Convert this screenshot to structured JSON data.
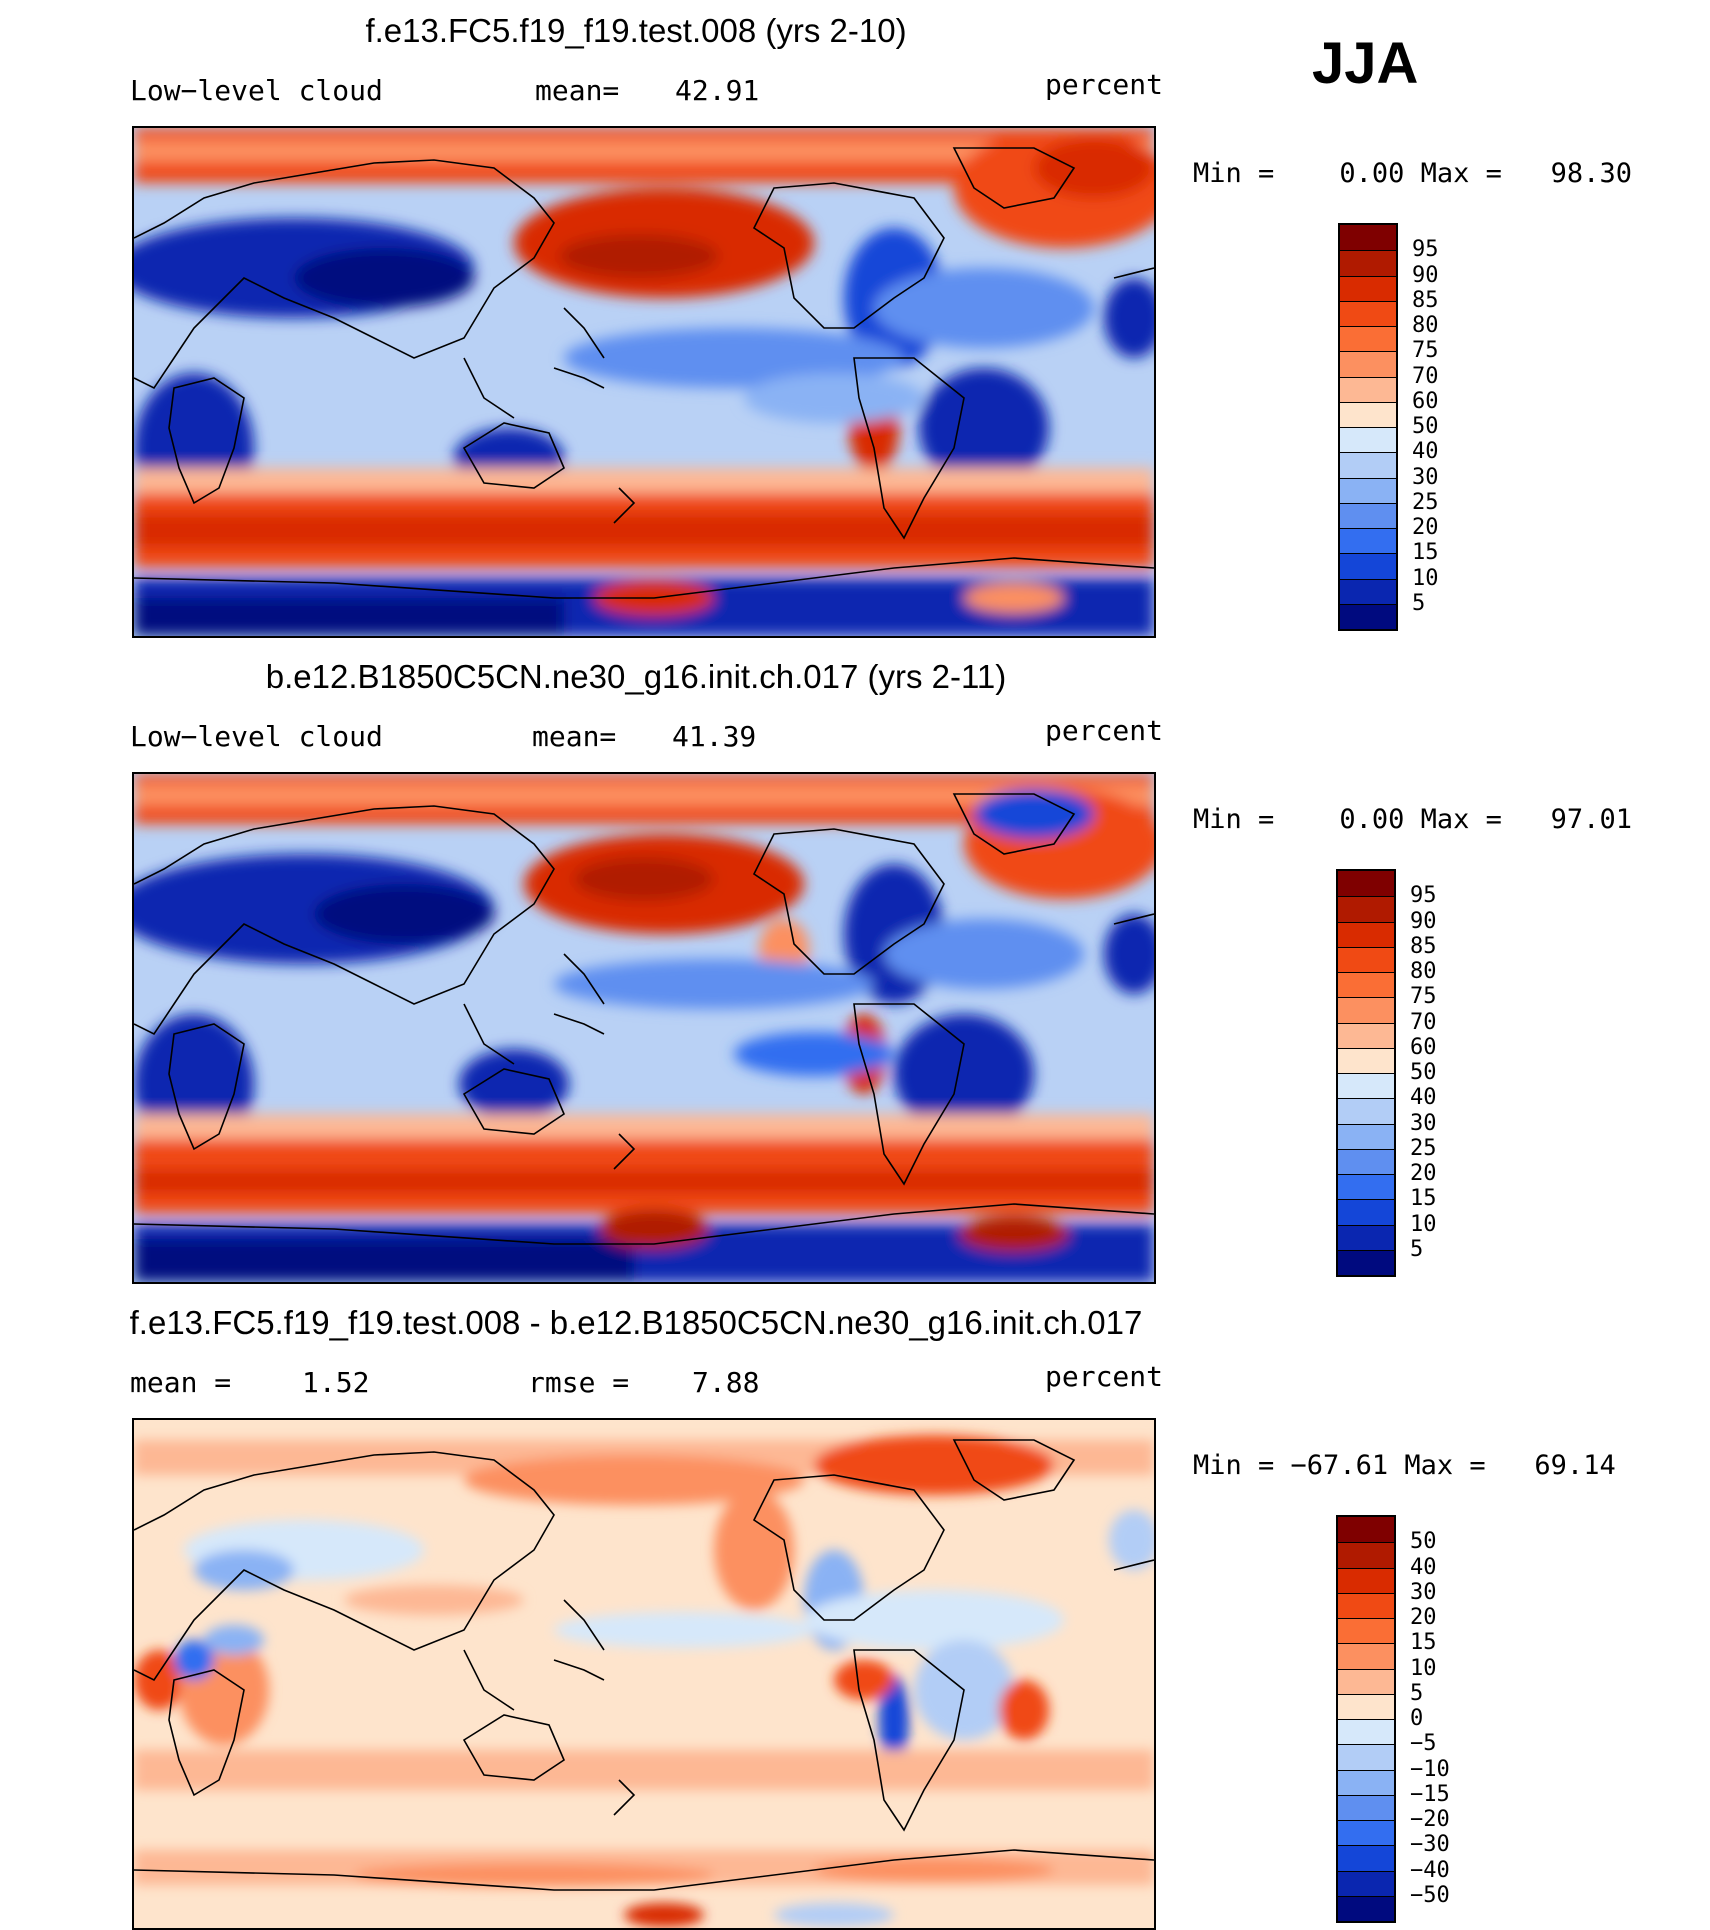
{
  "season": "JJA",
  "panels": [
    {
      "title": "f.e13.FC5.f19_f19.test.008 (yrs 2-10)",
      "left_label": "Low−level cloud",
      "stat1_label": "mean=",
      "stat1_value": "42.91",
      "stat2_label": "",
      "stat2_value": "",
      "units": "percent",
      "min_label": "Min =",
      "min_value": "0.00",
      "max_label": "Max =",
      "max_value": "98.30",
      "colorbar_type": "abs"
    },
    {
      "title": "b.e12.B1850C5CN.ne30_g16.init.ch.017 (yrs 2-11)",
      "left_label": "Low−level cloud",
      "stat1_label": "mean=",
      "stat1_value": "41.39",
      "stat2_label": "",
      "stat2_value": "",
      "units": "percent",
      "min_label": "Min =",
      "min_value": "0.00",
      "max_label": "Max =",
      "max_value": "97.01",
      "colorbar_type": "abs"
    },
    {
      "title": "f.e13.FC5.f19_f19.test.008 - b.e12.B1850C5CN.ne30_g16.init.ch.017",
      "left_label": "",
      "stat1_label": "mean =",
      "stat1_value": "1.52",
      "stat2_label": "rmse =",
      "stat2_value": "7.88",
      "units": "percent",
      "min_label": "Min =",
      "min_value": "−67.61",
      "max_label": "Max =",
      "max_value": "69.14",
      "colorbar_type": "diff"
    }
  ],
  "colorbars": {
    "abs": {
      "labels": [
        "95",
        "90",
        "85",
        "80",
        "75",
        "70",
        "60",
        "50",
        "40",
        "30",
        "25",
        "20",
        "15",
        "10",
        "5"
      ],
      "colors": [
        "#7f0000",
        "#b01a00",
        "#d92b00",
        "#f04a14",
        "#fa6e35",
        "#fc9060",
        "#fdb894",
        "#fee4cc",
        "#d6e8fa",
        "#b2cdf6",
        "#8ab2f4",
        "#5f8ff0",
        "#336ef0",
        "#1446d8",
        "#0a26b0",
        "#000a7f"
      ]
    },
    "diff": {
      "labels": [
        "50",
        "40",
        "30",
        "20",
        "15",
        "10",
        "5",
        "0",
        "−5",
        "−10",
        "−15",
        "−20",
        "−30",
        "−40",
        "−50"
      ],
      "colors": [
        "#7f0000",
        "#b01a00",
        "#d92b00",
        "#f04a14",
        "#fa6e35",
        "#fc9060",
        "#fdb894",
        "#fee4cc",
        "#d6e8fa",
        "#b2cdf6",
        "#8ab2f4",
        "#5f8ff0",
        "#336ef0",
        "#1446d8",
        "#0a26b0",
        "#000a7f"
      ]
    }
  }
}
